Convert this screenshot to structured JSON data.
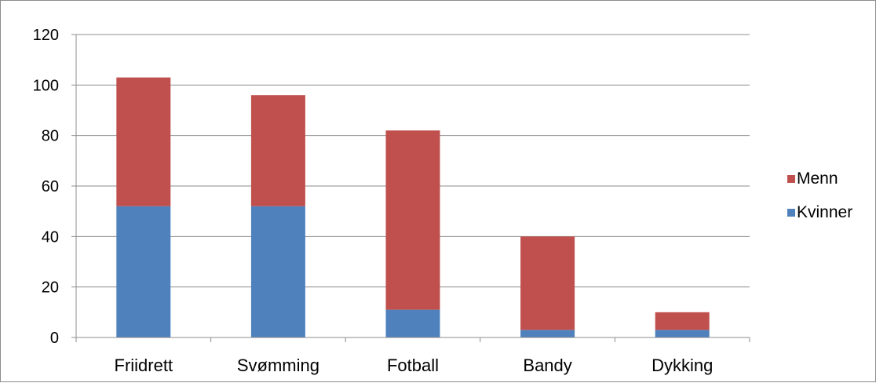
{
  "chart_data": {
    "type": "bar",
    "stacked": true,
    "categories": [
      "Friidrett",
      "Svømming",
      "Fotball",
      "Bandy",
      "Dykking"
    ],
    "series": [
      {
        "name": "Kvinner",
        "color": "#4f81bd",
        "values": [
          52,
          52,
          11,
          3,
          3
        ]
      },
      {
        "name": "Menn",
        "color": "#c0504d",
        "values": [
          51,
          44,
          71,
          37,
          7
        ]
      }
    ],
    "ylim": [
      0,
      120
    ],
    "yticks": [
      "0",
      "20",
      "40",
      "60",
      "80",
      "100",
      "120"
    ],
    "title": "",
    "xlabel": "",
    "ylabel": "",
    "grid": true,
    "legend_position": "right",
    "legend_order": [
      "Menn",
      "Kvinner"
    ]
  }
}
